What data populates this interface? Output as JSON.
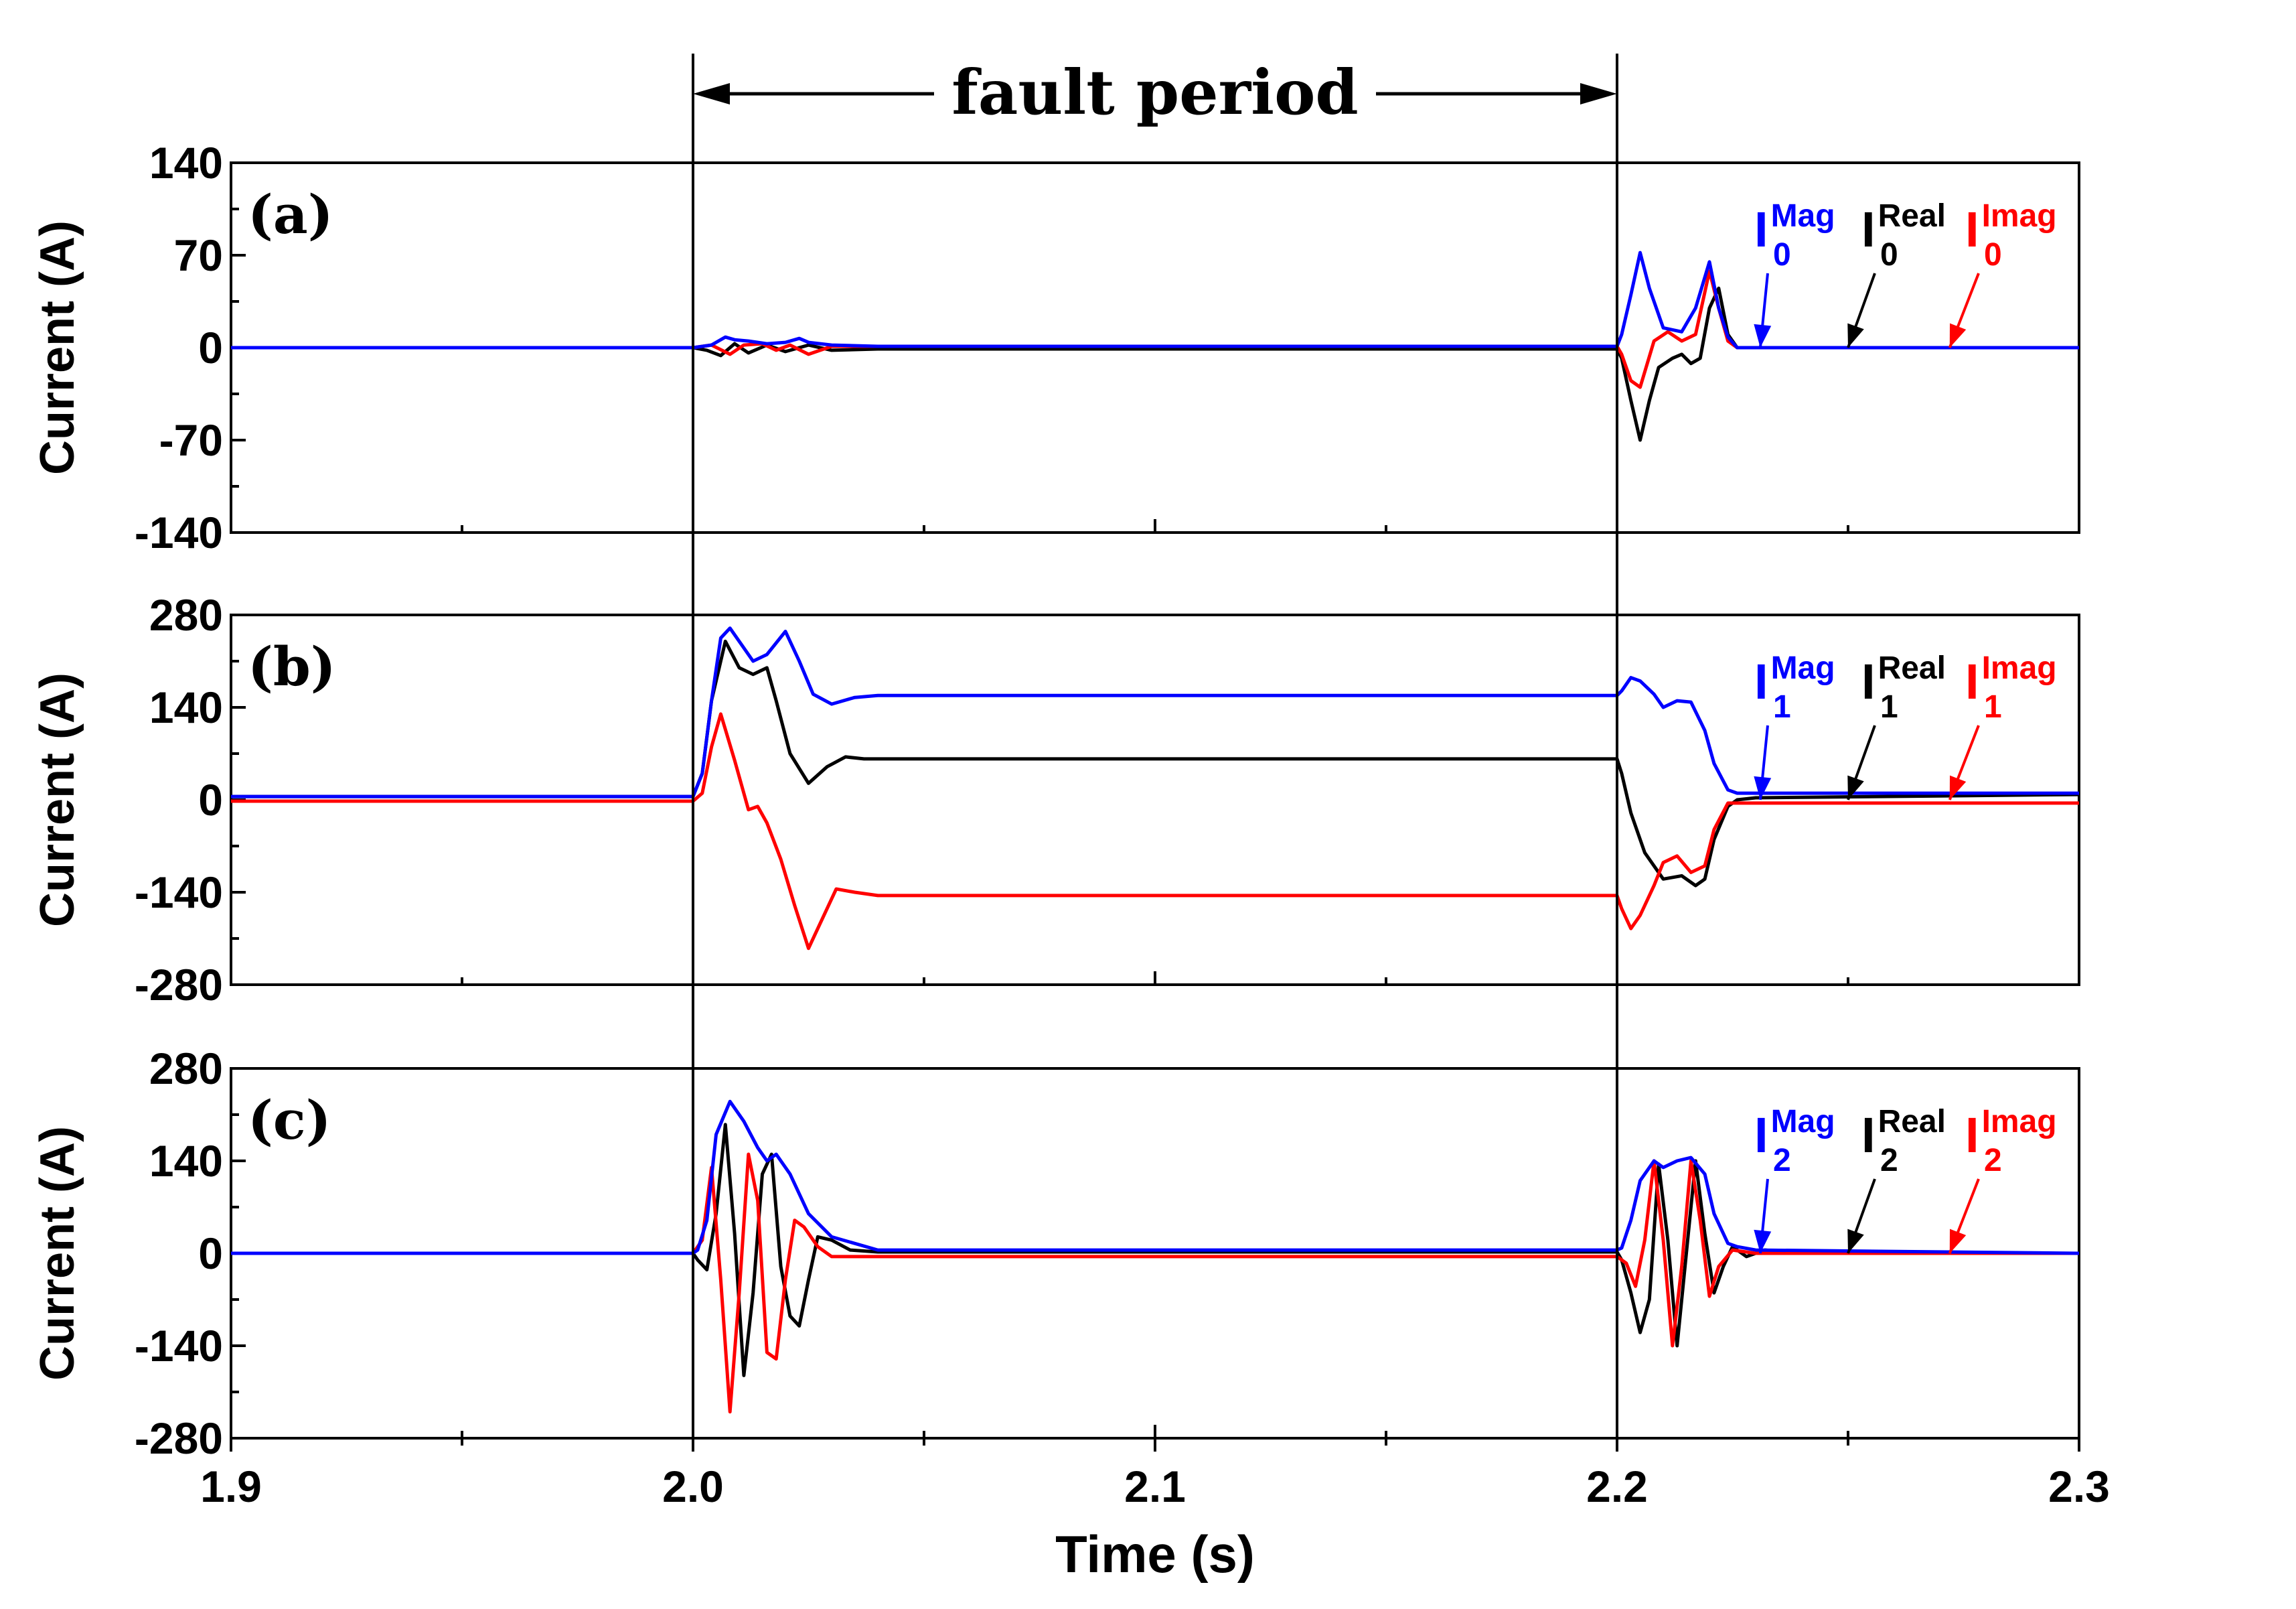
{
  "chart_data": {
    "type": "line",
    "title": "",
    "annotation": "fault period",
    "fault_start": 2.0,
    "fault_end": 2.2,
    "xlabel": "Time (s)",
    "xlim": [
      1.9,
      2.3
    ],
    "x_ticks": [
      "1.9",
      "2.0",
      "2.1",
      "2.2",
      "2.3"
    ],
    "x_tick_values": [
      1.9,
      2.0,
      2.1,
      2.2,
      2.3
    ],
    "colors": {
      "Mag": "#0000ff",
      "Real": "#000000",
      "Imag": "#ff0000"
    },
    "panels": [
      {
        "label": "(a)",
        "ylabel": "Current (A)",
        "ylim": [
          -140,
          140
        ],
        "y_ticks": [
          "140",
          "70",
          "0",
          "-70",
          "-140"
        ],
        "y_tick_values": [
          140,
          70,
          0,
          -70,
          -140
        ],
        "legend": [
          {
            "key": "Mag",
            "base": "I",
            "sub": "0",
            "sup": "Mag"
          },
          {
            "key": "Real",
            "base": "I",
            "sub": "0",
            "sup": "Real"
          },
          {
            "key": "Imag",
            "base": "I",
            "sub": "0",
            "sup": "Imag"
          }
        ],
        "series": [
          {
            "key": "Real",
            "x": [
              1.9,
              2.0,
              2.003,
              2.006,
              2.009,
              2.012,
              2.016,
              2.02,
              2.025,
              2.03,
              2.04,
              2.2,
              2.201,
              2.203,
              2.205,
              2.207,
              2.209,
              2.212,
              2.214,
              2.216,
              2.218,
              2.22,
              2.222,
              2.224,
              2.226,
              2.23,
              2.3
            ],
            "y": [
              0,
              0,
              -2,
              -6,
              3,
              -4,
              2,
              -3,
              2,
              -2,
              -1,
              -1,
              -8,
              -40,
              -70,
              -40,
              -15,
              -8,
              -5,
              -12,
              -8,
              30,
              45,
              10,
              0,
              0,
              0
            ]
          },
          {
            "key": "Imag",
            "x": [
              1.9,
              2.0,
              2.004,
              2.008,
              2.011,
              2.015,
              2.018,
              2.021,
              2.025,
              2.03,
              2.04,
              2.2,
              2.201,
              2.203,
              2.205,
              2.208,
              2.211,
              2.214,
              2.217,
              2.22,
              2.222,
              2.224,
              2.226,
              2.23,
              2.3
            ],
            "y": [
              0,
              0,
              2,
              -5,
              2,
              3,
              -2,
              2,
              -5,
              1,
              1,
              1,
              -5,
              -25,
              -30,
              5,
              12,
              5,
              10,
              58,
              30,
              5,
              0,
              0,
              0
            ]
          },
          {
            "key": "Mag",
            "x": [
              1.9,
              2.0,
              2.004,
              2.007,
              2.009,
              2.012,
              2.016,
              2.02,
              2.023,
              2.025,
              2.03,
              2.04,
              2.2,
              2.201,
              2.203,
              2.205,
              2.207,
              2.21,
              2.214,
              2.217,
              2.22,
              2.222,
              2.224,
              2.226,
              2.23,
              2.3
            ],
            "y": [
              0,
              0,
              2,
              8,
              6,
              5,
              3,
              4,
              7,
              4,
              2,
              1,
              1,
              10,
              40,
              72,
              45,
              15,
              12,
              30,
              65,
              30,
              8,
              0,
              0,
              0
            ]
          }
        ]
      },
      {
        "label": "(b)",
        "ylabel": "Current (A)",
        "ylim": [
          -280,
          280
        ],
        "y_ticks": [
          "280",
          "140",
          "0",
          "-140",
          "-280"
        ],
        "y_tick_values": [
          280,
          140,
          0,
          -140,
          -280
        ],
        "legend": [
          {
            "key": "Mag",
            "base": "I",
            "sub": "1",
            "sup": "Mag"
          },
          {
            "key": "Real",
            "base": "I",
            "sub": "1",
            "sup": "Real"
          },
          {
            "key": "Imag",
            "base": "I",
            "sub": "1",
            "sup": "Imag"
          }
        ],
        "series": [
          {
            "key": "Real",
            "x": [
              1.9,
              2.0,
              2.002,
              2.004,
              2.007,
              2.01,
              2.013,
              2.016,
              2.018,
              2.021,
              2.025,
              2.029,
              2.033,
              2.037,
              2.045,
              2.2,
              2.201,
              2.203,
              2.206,
              2.21,
              2.214,
              2.217,
              2.219,
              2.221,
              2.224,
              2.226,
              2.23,
              2.3
            ],
            "y": [
              5,
              5,
              40,
              150,
              240,
              200,
              190,
              200,
              150,
              70,
              25,
              50,
              65,
              62,
              62,
              62,
              40,
              -20,
              -80,
              -120,
              -115,
              -130,
              -120,
              -60,
              -10,
              0,
              3,
              8
            ]
          },
          {
            "key": "Imag",
            "x": [
              1.9,
              2.0,
              2.002,
              2.004,
              2.006,
              2.009,
              2.012,
              2.014,
              2.016,
              2.019,
              2.022,
              2.025,
              2.028,
              2.031,
              2.035,
              2.04,
              2.2,
              2.201,
              2.203,
              2.205,
              2.208,
              2.21,
              2.213,
              2.216,
              2.219,
              2.221,
              2.224,
              2.226,
              2.23,
              2.3
            ],
            "y": [
              -2,
              -2,
              10,
              80,
              130,
              60,
              -15,
              -10,
              -35,
              -90,
              -160,
              -225,
              -180,
              -135,
              -140,
              -145,
              -145,
              -165,
              -195,
              -175,
              -130,
              -95,
              -85,
              -110,
              -100,
              -45,
              -5,
              -5,
              -5,
              -5
            ]
          },
          {
            "key": "Mag",
            "x": [
              1.9,
              2.0,
              2.002,
              2.004,
              2.006,
              2.008,
              2.01,
              2.013,
              2.016,
              2.02,
              2.023,
              2.026,
              2.03,
              2.035,
              2.04,
              2.2,
              2.201,
              2.203,
              2.205,
              2.208,
              2.21,
              2.213,
              2.216,
              2.219,
              2.221,
              2.224,
              2.226,
              2.23,
              2.3
            ],
            "y": [
              5,
              5,
              40,
              150,
              245,
              260,
              240,
              210,
              220,
              255,
              210,
              160,
              145,
              155,
              158,
              158,
              165,
              185,
              180,
              160,
              140,
              150,
              148,
              105,
              55,
              15,
              10,
              10,
              10
            ]
          }
        ]
      },
      {
        "label": "(c)",
        "ylabel": "Current (A)",
        "ylim": [
          -280,
          280
        ],
        "y_ticks": [
          "280",
          "140",
          "0",
          "-140",
          "-280"
        ],
        "y_tick_values": [
          280,
          140,
          0,
          -140,
          -280
        ],
        "legend": [
          {
            "key": "Mag",
            "base": "I",
            "sub": "2",
            "sup": "Mag"
          },
          {
            "key": "Real",
            "base": "I",
            "sub": "2",
            "sup": "Real"
          },
          {
            "key": "Imag",
            "base": "I",
            "sub": "2",
            "sup": "Imag"
          }
        ],
        "series": [
          {
            "key": "Real",
            "x": [
              1.9,
              2.0,
              2.001,
              2.003,
              2.005,
              2.007,
              2.009,
              2.011,
              2.013,
              2.015,
              2.017,
              2.019,
              2.021,
              2.023,
              2.025,
              2.027,
              2.03,
              2.034,
              2.04,
              2.2,
              2.201,
              2.203,
              2.205,
              2.207,
              2.209,
              2.211,
              2.213,
              2.215,
              2.217,
              2.219,
              2.221,
              2.223,
              2.225,
              2.228,
              2.232,
              2.24,
              2.3
            ],
            "y": [
              0,
              0,
              -10,
              -25,
              60,
              195,
              30,
              -185,
              -60,
              120,
              150,
              -20,
              -95,
              -110,
              -40,
              25,
              20,
              5,
              2,
              2,
              -10,
              -60,
              -120,
              -70,
              135,
              20,
              -140,
              0,
              140,
              30,
              -60,
              -20,
              10,
              -5,
              5,
              0,
              0
            ]
          },
          {
            "key": "Imag",
            "x": [
              1.9,
              2.0,
              2.002,
              2.004,
              2.006,
              2.008,
              2.01,
              2.012,
              2.014,
              2.016,
              2.018,
              2.02,
              2.022,
              2.024,
              2.027,
              2.03,
              2.035,
              2.04,
              2.2,
              2.202,
              2.204,
              2.206,
              2.208,
              2.21,
              2.212,
              2.214,
              2.216,
              2.218,
              2.22,
              2.222,
              2.225,
              2.23,
              2.3
            ],
            "y": [
              0,
              0,
              20,
              130,
              -40,
              -240,
              -60,
              150,
              80,
              -150,
              -160,
              -40,
              50,
              40,
              10,
              -5,
              -5,
              -5,
              -5,
              -15,
              -50,
              20,
              140,
              20,
              -140,
              -20,
              140,
              50,
              -65,
              -20,
              5,
              0,
              0
            ]
          },
          {
            "key": "Mag",
            "x": [
              1.9,
              2.0,
              2.001,
              2.003,
              2.005,
              2.008,
              2.011,
              2.014,
              2.016,
              2.018,
              2.021,
              2.025,
              2.03,
              2.04,
              2.2,
              2.201,
              2.203,
              2.205,
              2.208,
              2.21,
              2.213,
              2.216,
              2.219,
              2.221,
              2.224,
              2.226,
              2.23,
              2.3
            ],
            "y": [
              0,
              0,
              5,
              50,
              180,
              230,
              200,
              160,
              140,
              150,
              120,
              60,
              25,
              5,
              5,
              8,
              50,
              110,
              140,
              130,
              140,
              145,
              120,
              60,
              15,
              10,
              5,
              0
            ]
          }
        ]
      }
    ]
  }
}
